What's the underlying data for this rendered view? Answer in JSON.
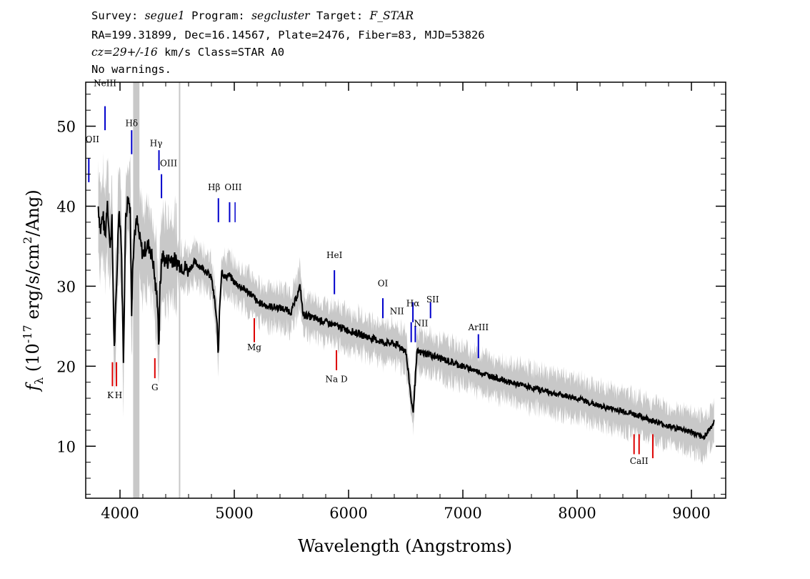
{
  "header": {
    "survey_label": "Survey:",
    "survey": "segue1",
    "program_label": "Program:",
    "program": "segcluster",
    "target_label": "Target:",
    "target": "F_STAR",
    "line2": "RA=199.31899, Dec=16.14567, Plate=2476, Fiber=83, MJD=53826",
    "cz": "cz=29+/-16",
    "line3_rest": " km/s Class=STAR A0",
    "line4": "No warnings."
  },
  "chart_data": {
    "type": "line",
    "xlabel": "Wavelength (Angstroms)",
    "ylabel_prefix": "f",
    "ylabel_sub": "λ",
    "ylabel_rest": " (10",
    "ylabel_exp": "-17",
    "ylabel_unit": " erg/s/cm",
    "ylabel_exp2": "2",
    "ylabel_tail": "/Ang)",
    "xlim": [
      3700,
      9300
    ],
    "ylim": [
      3.5,
      55.5
    ],
    "xticks": [
      4000,
      5000,
      6000,
      7000,
      8000,
      9000
    ],
    "yticks": [
      10,
      20,
      30,
      40,
      50
    ],
    "colors": {
      "flux": "#000000",
      "error": "#c8c8c8",
      "emission": "#0000cc",
      "absorption": "#dd0000"
    },
    "masked_bands": [
      {
        "x": [
          4115,
          4170
        ],
        "color": "#c8c8c8"
      },
      {
        "x": [
          4515,
          4525
        ],
        "color": "#c8c8c8"
      }
    ],
    "series": [
      {
        "style": "flux",
        "x": [
          3810,
          3830,
          3850,
          3870,
          3890,
          3910,
          3930,
          3950,
          3970,
          3990,
          4010,
          4030,
          4050,
          4070,
          4090,
          4101,
          4110,
          4130,
          4150,
          4170,
          4200,
          4230,
          4260,
          4290,
          4310,
          4330,
          4340,
          4350,
          4370,
          4400,
          4450,
          4500,
          4550,
          4600,
          4650,
          4700,
          4750,
          4800,
          4830,
          4850,
          4861,
          4870,
          4890,
          4920,
          4950,
          5000,
          5050,
          5100,
          5150,
          5200,
          5300,
          5400,
          5500,
          5577,
          5600,
          5700,
          5800,
          5900,
          6000,
          6100,
          6200,
          6300,
          6400,
          6500,
          6563,
          6600,
          6700,
          6800,
          6900,
          7000,
          7100,
          7200,
          7300,
          7400,
          7500,
          7600,
          7700,
          7800,
          7900,
          8000,
          8100,
          8200,
          8300,
          8400,
          8500,
          8600,
          8700,
          8800,
          8900,
          9000,
          9100,
          9200
        ],
        "y": [
          40,
          37,
          39,
          36,
          41,
          35,
          38,
          22,
          30,
          40,
          36,
          21,
          39,
          41,
          40,
          26,
          33,
          37,
          38,
          36,
          34,
          35,
          35,
          33,
          30,
          28,
          22,
          30,
          34,
          33,
          33.5,
          33,
          32.5,
          32,
          33,
          32.5,
          32,
          31,
          28,
          25,
          21,
          27,
          32,
          31,
          31.5,
          30.5,
          30,
          29.5,
          29,
          28,
          27.5,
          27.3,
          26.8,
          30,
          26.5,
          26,
          25.5,
          25,
          24.5,
          24,
          23.5,
          23,
          22.8,
          22,
          14,
          21.8,
          21.5,
          21,
          20.5,
          20,
          19.5,
          19,
          18.5,
          18,
          17.7,
          17.3,
          17,
          16.6,
          16.3,
          16,
          15.5,
          15,
          14.7,
          14.4,
          14,
          13.5,
          13,
          12.5,
          12.2,
          11.8,
          11,
          13
        ]
      }
    ],
    "annotations": [
      {
        "label": "OII",
        "x": 3727,
        "kind": "emission"
      },
      {
        "label": "NeIII",
        "x": 3869,
        "kind": "emission"
      },
      {
        "label": "Hδ",
        "x": 4102,
        "kind": "emission"
      },
      {
        "label": "Hγ",
        "x": 4341,
        "kind": "emission"
      },
      {
        "label": "OIII",
        "x": 4363,
        "kind": "emission"
      },
      {
        "label": "Hβ",
        "x": 4861,
        "kind": "emission"
      },
      {
        "label": "OIII",
        "x": 4959,
        "kind": "emission"
      },
      {
        "label": "HeI",
        "x": 5876,
        "kind": "emission"
      },
      {
        "label": "OI",
        "x": 6300,
        "kind": "emission"
      },
      {
        "label": "NII",
        "x": 6548,
        "kind": "emission"
      },
      {
        "label": "Hα",
        "x": 6563,
        "kind": "emission"
      },
      {
        "label": "SII",
        "x": 6717,
        "kind": "emission"
      },
      {
        "label": "NII",
        "x": 6584,
        "kind": "emission"
      },
      {
        "label": "ArIII",
        "x": 7136,
        "kind": "emission"
      },
      {
        "label": "K",
        "x": 3934,
        "kind": "absorption"
      },
      {
        "label": "H",
        "x": 3969,
        "kind": "absorption"
      },
      {
        "label": "G",
        "x": 4305,
        "kind": "absorption"
      },
      {
        "label": "Mg",
        "x": 5175,
        "kind": "absorption"
      },
      {
        "label": "Na D",
        "x": 5894,
        "kind": "absorption"
      },
      {
        "label": "CaII",
        "x": 8542,
        "kind": "absorption"
      }
    ]
  }
}
